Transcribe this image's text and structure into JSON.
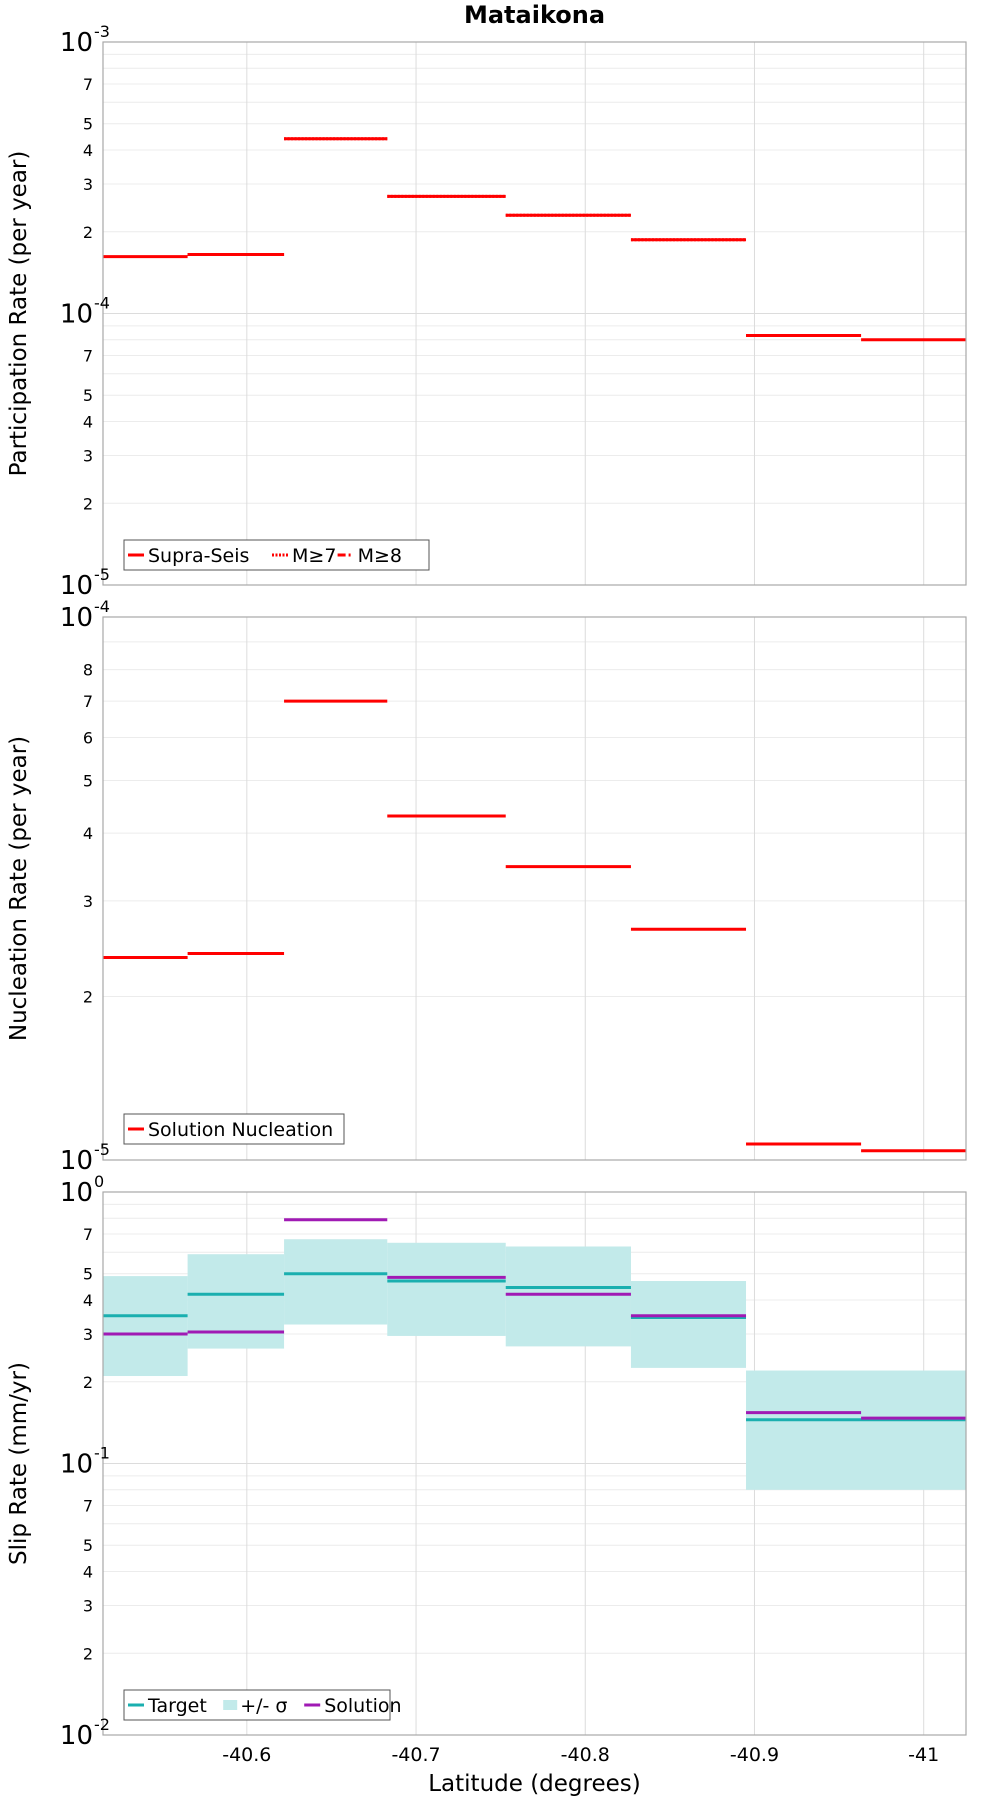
{
  "chart_data": [
    {
      "type": "line",
      "title": "Mataikona",
      "ylabel": "Participation Rate (per year)",
      "xlabel": "",
      "y_scale": "log",
      "ylim": [
        1e-05,
        0.001
      ],
      "xlim": [
        -40.515,
        -41.025
      ],
      "grid": true,
      "legend_position": "bottom-left",
      "y_ticks": [
        {
          "value": 0.001,
          "mantissa": "10",
          "exp": "-3"
        },
        {
          "value": 0.0007,
          "label": "7"
        },
        {
          "value": 0.0005,
          "label": "5"
        },
        {
          "value": 0.0004,
          "label": "4"
        },
        {
          "value": 0.0003,
          "label": "3"
        },
        {
          "value": 0.0002,
          "label": "2"
        },
        {
          "value": 0.0001,
          "mantissa": "10",
          "exp": "-4"
        },
        {
          "value": 7e-05,
          "label": "7"
        },
        {
          "value": 5e-05,
          "label": "5"
        },
        {
          "value": 4e-05,
          "label": "4"
        },
        {
          "value": 3e-05,
          "label": "3"
        },
        {
          "value": 2e-05,
          "label": "2"
        },
        {
          "value": 1e-05,
          "mantissa": "10",
          "exp": "-5"
        }
      ],
      "series": [
        {
          "name": "Supra-Seis",
          "color": "#ff0000",
          "style": "solid",
          "segments": [
            {
              "x0": -40.515,
              "x1": -40.565,
              "y": 0.000162
            },
            {
              "x0": -40.565,
              "x1": -40.622,
              "y": 0.000165
            },
            {
              "x0": -40.622,
              "x1": -40.683,
              "y": 0.00044
            },
            {
              "x0": -40.683,
              "x1": -40.753,
              "y": 0.00027
            },
            {
              "x0": -40.753,
              "x1": -40.827,
              "y": 0.00023
            },
            {
              "x0": -40.827,
              "x1": -40.895,
              "y": 0.000187
            },
            {
              "x0": -40.895,
              "x1": -40.963,
              "y": 8.3e-05
            },
            {
              "x0": -40.963,
              "x1": -41.025,
              "y": 8e-05
            }
          ]
        },
        {
          "name": "M≥7",
          "color": "#ff0000",
          "style": "dotted",
          "segments": [
            {
              "x0": -40.565,
              "x1": -40.622,
              "y": 0.000165
            },
            {
              "x0": -40.622,
              "x1": -40.683,
              "y": 0.00044
            },
            {
              "x0": -40.683,
              "x1": -40.753,
              "y": 0.00027
            },
            {
              "x0": -40.753,
              "x1": -40.827,
              "y": 0.00023
            },
            {
              "x0": -40.827,
              "x1": -40.895,
              "y": 0.000187
            },
            {
              "x0": -40.895,
              "x1": -40.963,
              "y": 8.3e-05
            }
          ]
        },
        {
          "name": "M≥8",
          "color": "#ff0000",
          "style": "dashdot",
          "segments": []
        }
      ]
    },
    {
      "type": "line",
      "title": "",
      "ylabel": "Nucleation Rate (per year)",
      "xlabel": "",
      "y_scale": "log",
      "ylim": [
        1e-05,
        0.0001
      ],
      "xlim": [
        -40.515,
        -41.025
      ],
      "grid": true,
      "legend_position": "bottom-left",
      "y_ticks": [
        {
          "value": 0.0001,
          "mantissa": "10",
          "exp": "-4"
        },
        {
          "value": 8e-05,
          "label": "8"
        },
        {
          "value": 7e-05,
          "label": "7"
        },
        {
          "value": 6e-05,
          "label": "6"
        },
        {
          "value": 5e-05,
          "label": "5"
        },
        {
          "value": 4e-05,
          "label": "4"
        },
        {
          "value": 3e-05,
          "label": "3"
        },
        {
          "value": 2e-05,
          "label": "2"
        },
        {
          "value": 1e-05,
          "mantissa": "10",
          "exp": "-5"
        }
      ],
      "series": [
        {
          "name": "Solution Nucleation",
          "color": "#ff0000",
          "style": "solid",
          "segments": [
            {
              "x0": -40.515,
              "x1": -40.565,
              "y": 2.36e-05
            },
            {
              "x0": -40.565,
              "x1": -40.622,
              "y": 2.4e-05
            },
            {
              "x0": -40.622,
              "x1": -40.683,
              "y": 7e-05
            },
            {
              "x0": -40.683,
              "x1": -40.753,
              "y": 4.3e-05
            },
            {
              "x0": -40.753,
              "x1": -40.827,
              "y": 3.47e-05
            },
            {
              "x0": -40.827,
              "x1": -40.895,
              "y": 2.66e-05
            },
            {
              "x0": -40.895,
              "x1": -40.963,
              "y": 1.07e-05
            },
            {
              "x0": -40.963,
              "x1": -41.025,
              "y": 1.04e-05
            }
          ]
        }
      ]
    },
    {
      "type": "line",
      "title": "",
      "ylabel": "Slip Rate (mm/yr)",
      "xlabel": "Latitude (degrees)",
      "y_scale": "log",
      "ylim": [
        0.01,
        1
      ],
      "xlim": [
        -40.515,
        -41.025
      ],
      "grid": true,
      "legend_position": "bottom-left",
      "x_ticks": [
        {
          "value": -40.6,
          "label": "-40.6"
        },
        {
          "value": -40.7,
          "label": "-40.7"
        },
        {
          "value": -40.8,
          "label": "-40.8"
        },
        {
          "value": -40.9,
          "label": "-40.9"
        },
        {
          "value": -41.0,
          "label": "-41"
        }
      ],
      "y_ticks": [
        {
          "value": 1,
          "mantissa": "10",
          "exp": "0"
        },
        {
          "value": 0.7,
          "label": "7"
        },
        {
          "value": 0.5,
          "label": "5"
        },
        {
          "value": 0.4,
          "label": "4"
        },
        {
          "value": 0.3,
          "label": "3"
        },
        {
          "value": 0.2,
          "label": "2"
        },
        {
          "value": 0.1,
          "mantissa": "10",
          "exp": "-1"
        },
        {
          "value": 0.07,
          "label": "7"
        },
        {
          "value": 0.05,
          "label": "5"
        },
        {
          "value": 0.04,
          "label": "4"
        },
        {
          "value": 0.03,
          "label": "3"
        },
        {
          "value": 0.02,
          "label": "2"
        },
        {
          "value": 0.01,
          "mantissa": "10",
          "exp": "-2"
        }
      ],
      "band": {
        "name": "+/- σ",
        "color": "#c2eaea",
        "segments": [
          {
            "x0": -40.515,
            "x1": -40.565,
            "lo": 0.21,
            "hi": 0.49
          },
          {
            "x0": -40.565,
            "x1": -40.622,
            "lo": 0.265,
            "hi": 0.59
          },
          {
            "x0": -40.622,
            "x1": -40.683,
            "lo": 0.325,
            "hi": 0.67
          },
          {
            "x0": -40.683,
            "x1": -40.753,
            "lo": 0.295,
            "hi": 0.65
          },
          {
            "x0": -40.753,
            "x1": -40.827,
            "lo": 0.27,
            "hi": 0.63
          },
          {
            "x0": -40.827,
            "x1": -40.895,
            "lo": 0.225,
            "hi": 0.47
          },
          {
            "x0": -40.895,
            "x1": -41.025,
            "lo": 0.08,
            "hi": 0.22
          }
        ]
      },
      "series": [
        {
          "name": "Target",
          "color": "#1aafaf",
          "style": "solid",
          "segments": [
            {
              "x0": -40.515,
              "x1": -40.565,
              "y": 0.35
            },
            {
              "x0": -40.565,
              "x1": -40.622,
              "y": 0.42
            },
            {
              "x0": -40.622,
              "x1": -40.683,
              "y": 0.5
            },
            {
              "x0": -40.683,
              "x1": -40.753,
              "y": 0.47
            },
            {
              "x0": -40.753,
              "x1": -40.827,
              "y": 0.445
            },
            {
              "x0": -40.827,
              "x1": -40.895,
              "y": 0.345
            },
            {
              "x0": -40.895,
              "x1": -41.025,
              "y": 0.145
            }
          ]
        },
        {
          "name": "Solution",
          "color": "#a01ab4",
          "style": "solid",
          "segments": [
            {
              "x0": -40.515,
              "x1": -40.565,
              "y": 0.3
            },
            {
              "x0": -40.565,
              "x1": -40.622,
              "y": 0.305
            },
            {
              "x0": -40.622,
              "x1": -40.683,
              "y": 0.79
            },
            {
              "x0": -40.683,
              "x1": -40.753,
              "y": 0.485
            },
            {
              "x0": -40.753,
              "x1": -40.827,
              "y": 0.42
            },
            {
              "x0": -40.827,
              "x1": -40.895,
              "y": 0.35
            },
            {
              "x0": -40.895,
              "x1": -40.963,
              "y": 0.154
            },
            {
              "x0": -40.963,
              "x1": -41.025,
              "y": 0.147
            }
          ]
        }
      ]
    }
  ]
}
